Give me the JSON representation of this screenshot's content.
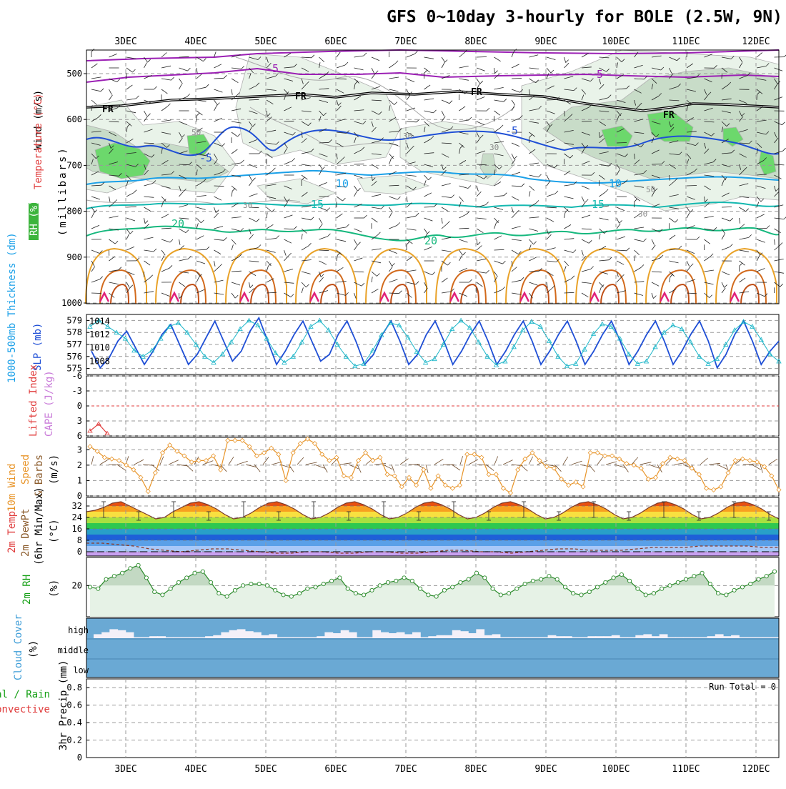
{
  "title": "GFS 0~10day 3-hourly for BOLE (2.5W, 9N)",
  "dates": [
    "3DEC",
    "4DEC",
    "5DEC",
    "6DEC",
    "7DEC",
    "8DEC",
    "9DEC",
    "10DEC",
    "11DEC",
    "12DEC"
  ],
  "colors": {
    "purple": "#9b1fb4",
    "blue": "#1f4fd6",
    "sky": "#1aa0e8",
    "teal": "#14b8b0",
    "green": "#16b87e",
    "orange": "#e9a228",
    "darkorange": "#d26a1c",
    "rh_green": "#6cd86c",
    "cloud": "#6aa9d4"
  },
  "panels": {
    "upper": {
      "label_wind": "Wind (m/s)",
      "label_temp": "Temperature (°C)",
      "label_rh": "RH (%)",
      "label_mb": "(millibars)",
      "pressure_ticks": [
        "500",
        "600",
        "700",
        "800",
        "900",
        "1000"
      ],
      "contour_labels": {
        "t5a": "-5",
        "t5b": "-5",
        "fr1": "FR",
        "fr2": "FR",
        "fr3": "FR",
        "fr4": "FR",
        "m5a": "-5",
        "m5b": "-5",
        "p10a": "10",
        "p10b": "10",
        "p15a": "15",
        "p15b": "15",
        "p20a": "20",
        "p20b": "20",
        "rh50": "50",
        "rh30a": "30",
        "rh30b": "30",
        "rh30c": "30",
        "rh50b": "50",
        "rh30d": "30"
      }
    },
    "slp": {
      "label_thick": "1000-500mb Thickness (dm)",
      "label_slp": "SLP (mb)",
      "thick_ticks": [
        "579",
        "578",
        "577",
        "576",
        "575"
      ],
      "slp_ticks": [
        "1014",
        "1012",
        "1010",
        "1008"
      ]
    },
    "cape": {
      "label_li": "Lifted Index",
      "label_cape": "CAPE (J/kg)",
      "ticks": [
        "-6",
        "-3",
        "0",
        "3",
        "6"
      ]
    },
    "wind10": {
      "label_a": "10m Wind",
      "label_b": "Speed",
      "label_c": "& Barbs",
      "label_unit": "(m/s)",
      "ticks": [
        "3",
        "2",
        "1",
        "0"
      ]
    },
    "temp": {
      "label_a": "2m Temp",
      "label_b": "2m DewPt",
      "label_c": "(6hr Min/Max)",
      "label_unit": "(°C)",
      "ticks": [
        "32",
        "24",
        "16",
        "8",
        "0"
      ]
    },
    "rh": {
      "label": "2m RH",
      "label_unit": "(%)",
      "ticks": [
        "20"
      ]
    },
    "cloud": {
      "label": "Cloud Cover",
      "label_unit": "(%)",
      "levels": [
        "high",
        "middle",
        "low"
      ]
    },
    "precip": {
      "label_a": "Total / Rain",
      "label_b": "Convective",
      "label_c": "3hr Precip (mm)",
      "ticks": [
        "0.8",
        "0.6",
        "0.4",
        "0.2",
        "0"
      ],
      "run_total": "Run Total = 0"
    }
  },
  "chart_data": [
    {
      "type": "line",
      "name": "sea level pressure and thickness",
      "x_start": "2DEC 12UTC",
      "x_step_hours": 3,
      "series": [
        {
          "name": "SLP (mb)",
          "values": [
            1009.5,
            1007.0,
            1008.5,
            1011.0,
            1012.5,
            1010.0,
            1007.5,
            1009.5,
            1012.0,
            1013.5,
            1010.5,
            1007.5,
            1009.0,
            1011.5,
            1014.0,
            1011.0,
            1008.0,
            1009.5,
            1012.5,
            1014.5,
            1011.0,
            1007.5,
            1009.5,
            1012.0,
            1014.0,
            1011.0,
            1008.0,
            1009.0,
            1012.0,
            1014.0,
            1011.0,
            1007.5,
            1009.0,
            1012.0,
            1014.0,
            1011.0,
            1007.5,
            1009.0,
            1012.0,
            1014.0,
            1011.0,
            1007.5,
            1009.5,
            1012.0,
            1014.0,
            1011.0,
            1007.5,
            1009.5,
            1012.0,
            1014.0,
            1011.0,
            1007.5,
            1009.5,
            1012.0,
            1014.0,
            1011.0,
            1007.5,
            1009.5,
            1012.0,
            1014.0,
            1011.0,
            1007.5,
            1009.5,
            1012.0,
            1014.0,
            1011.0,
            1007.5,
            1009.5,
            1012.0,
            1014.0,
            1011.0,
            1007.0,
            1009.0,
            1012.0,
            1014.0,
            1011.0,
            1007.5,
            1009.5,
            1011.0
          ]
        },
        {
          "name": "1000-500mb Thickness (dm)",
          "values": [
            578.5,
            579.0,
            578.5,
            578.0,
            577.5,
            576.5,
            576.0,
            576.5,
            577.5,
            578.5,
            578.8,
            578.0,
            577.0,
            576.0,
            575.5,
            576.2,
            577.2,
            578.3,
            579.0,
            578.6,
            577.5,
            576.3,
            575.5,
            576.0,
            577.2,
            578.5,
            579.0,
            578.2,
            577.0,
            576.0,
            575.2,
            575.4,
            576.5,
            577.8,
            578.8,
            578.6,
            577.6,
            576.4,
            575.5,
            575.8,
            577.0,
            578.3,
            579.0,
            578.4,
            577.2,
            576.0,
            575.3,
            575.6,
            576.8,
            578.2,
            578.9,
            578.5,
            577.3,
            576.0,
            575.2,
            575.4,
            576.6,
            577.9,
            578.7,
            578.5,
            577.5,
            576.2,
            575.4,
            575.6,
            576.8,
            578.0,
            578.6,
            578.3,
            577.2,
            576.0,
            575.4,
            575.8,
            577.0,
            578.2,
            578.9,
            578.5,
            577.4,
            576.2,
            575.6
          ]
        }
      ],
      "y_left_range": [
        574.5,
        579.5
      ],
      "y_right_range": [
        1006,
        1015
      ]
    },
    {
      "type": "line",
      "name": "lifted index",
      "ticks": [
        "-6",
        "-3",
        "0",
        "3",
        "6"
      ],
      "values_shown": [
        5,
        3.6,
        5.5
      ],
      "ylim": [
        6,
        -6
      ]
    },
    {
      "type": "line",
      "name": "10m wind speed (m/s)",
      "values": [
        3.2,
        2.9,
        2.5,
        2.4,
        2.3,
        2.0,
        1.7,
        1.2,
        0.3,
        1.5,
        2.8,
        3.3,
        2.9,
        2.6,
        2.2,
        2.3,
        2.3,
        2.6,
        1.7,
        3.6,
        3.6,
        3.6,
        3.2,
        2.6,
        2.8,
        3.1,
        2.7,
        1.0,
        2.8,
        3.4,
        3.7,
        3.4,
        2.7,
        2.3,
        2.5,
        1.3,
        1.2,
        2.3,
        2.8,
        2.3,
        2.5,
        1.4,
        1.3,
        0.6,
        1.2,
        0.7,
        1.7,
        0.5,
        1.3,
        0.7,
        0.5,
        0.7,
        2.7,
        2.7,
        2.5,
        1.4,
        1.4,
        0.5,
        0.2,
        1.7,
        2.4,
        2.8,
        2.3,
        1.9,
        1.8,
        1.1,
        0.7,
        0.9,
        0.6,
        2.8,
        2.8,
        2.6,
        2.6,
        2.4,
        2.1,
        2.0,
        1.8,
        1.1,
        1.2,
        2.1,
        2.5,
        2.4,
        2.3,
        1.8,
        1.4,
        0.5,
        0.4,
        0.6,
        1.5,
        2.3,
        2.4,
        2.3,
        2.2,
        1.9,
        1.3,
        0.4
      ],
      "ylim": [
        0,
        3.8
      ]
    },
    {
      "type": "area",
      "name": "2m temperature (°C)",
      "values": [
        28,
        29,
        31,
        34,
        35,
        32,
        29,
        26,
        23,
        24,
        28,
        31,
        34,
        35,
        33,
        30,
        26,
        23,
        24,
        27,
        31,
        34,
        35,
        33,
        30,
        26,
        23,
        24,
        27,
        31,
        34,
        35,
        33,
        30,
        26,
        23,
        24,
        27,
        31,
        34,
        35,
        33,
        30,
        26,
        23,
        24,
        27,
        31,
        34,
        35,
        33,
        30,
        26,
        23,
        24,
        27,
        31,
        34,
        35,
        33,
        30,
        26,
        23,
        24,
        27,
        31,
        34,
        35,
        33,
        30,
        26,
        23,
        24,
        27,
        31,
        34,
        35,
        33,
        30,
        26,
        23
      ],
      "dewpoint_values": [
        6,
        6,
        5,
        4,
        2,
        1,
        0,
        1,
        2,
        2,
        1,
        0,
        -1,
        -1,
        0,
        0,
        -1,
        -1,
        0,
        0,
        -1,
        -1,
        0,
        1,
        1,
        0,
        0,
        -1,
        0,
        1,
        2,
        2,
        1,
        1,
        1,
        2,
        3,
        3,
        3,
        4,
        4,
        4,
        4,
        3,
        3
      ],
      "ylim": [
        -3,
        38
      ]
    },
    {
      "type": "area",
      "name": "2m relative humidity (%)",
      "values": [
        19,
        18,
        24,
        26,
        28,
        31,
        33,
        25,
        16,
        14,
        18,
        22,
        25,
        28,
        29,
        22,
        15,
        13,
        17,
        20,
        21,
        21,
        20,
        17,
        14,
        13,
        15,
        18,
        19,
        21,
        23,
        25,
        18,
        15,
        14,
        17,
        20,
        22,
        23,
        25,
        23,
        18,
        14,
        13,
        17,
        19,
        22,
        24,
        28,
        25,
        18,
        14,
        15,
        18,
        21,
        23,
        24,
        26,
        24,
        19,
        15,
        14,
        16,
        19,
        22,
        25,
        27,
        23,
        18,
        14,
        15,
        18,
        20,
        22,
        24,
        26,
        28,
        21,
        15,
        14,
        17,
        19,
        21,
        24,
        26,
        29
      ],
      "ylim": [
        0,
        38
      ]
    },
    {
      "type": "bar",
      "name": "high cloud cover (%)",
      "values": [
        80,
        70,
        55,
        60,
        70,
        95,
        95,
        90,
        90,
        95,
        95,
        95,
        95,
        95,
        90,
        85,
        70,
        60,
        55,
        65,
        70,
        85,
        80,
        95,
        95,
        95,
        95,
        95,
        90,
        70,
        75,
        60,
        70,
        95,
        95,
        60,
        70,
        75,
        70,
        80,
        70,
        95,
        90,
        85,
        85,
        60,
        65,
        75,
        55,
        85,
        80,
        95,
        95,
        95,
        95,
        95,
        95,
        85,
        90,
        90,
        95,
        95,
        90,
        90,
        90,
        85,
        95,
        95,
        85,
        80,
        90,
        80,
        95,
        95,
        95,
        95,
        95,
        90,
        80,
        90,
        85,
        95,
        95,
        95,
        95,
        95
      ],
      "ylim": [
        0,
        100
      ]
    },
    {
      "type": "bar",
      "name": "3hr precipitation (mm)",
      "values": [
        0,
        0,
        0,
        0,
        0,
        0,
        0,
        0,
        0,
        0
      ],
      "ylim": [
        0,
        0.9
      ]
    }
  ]
}
